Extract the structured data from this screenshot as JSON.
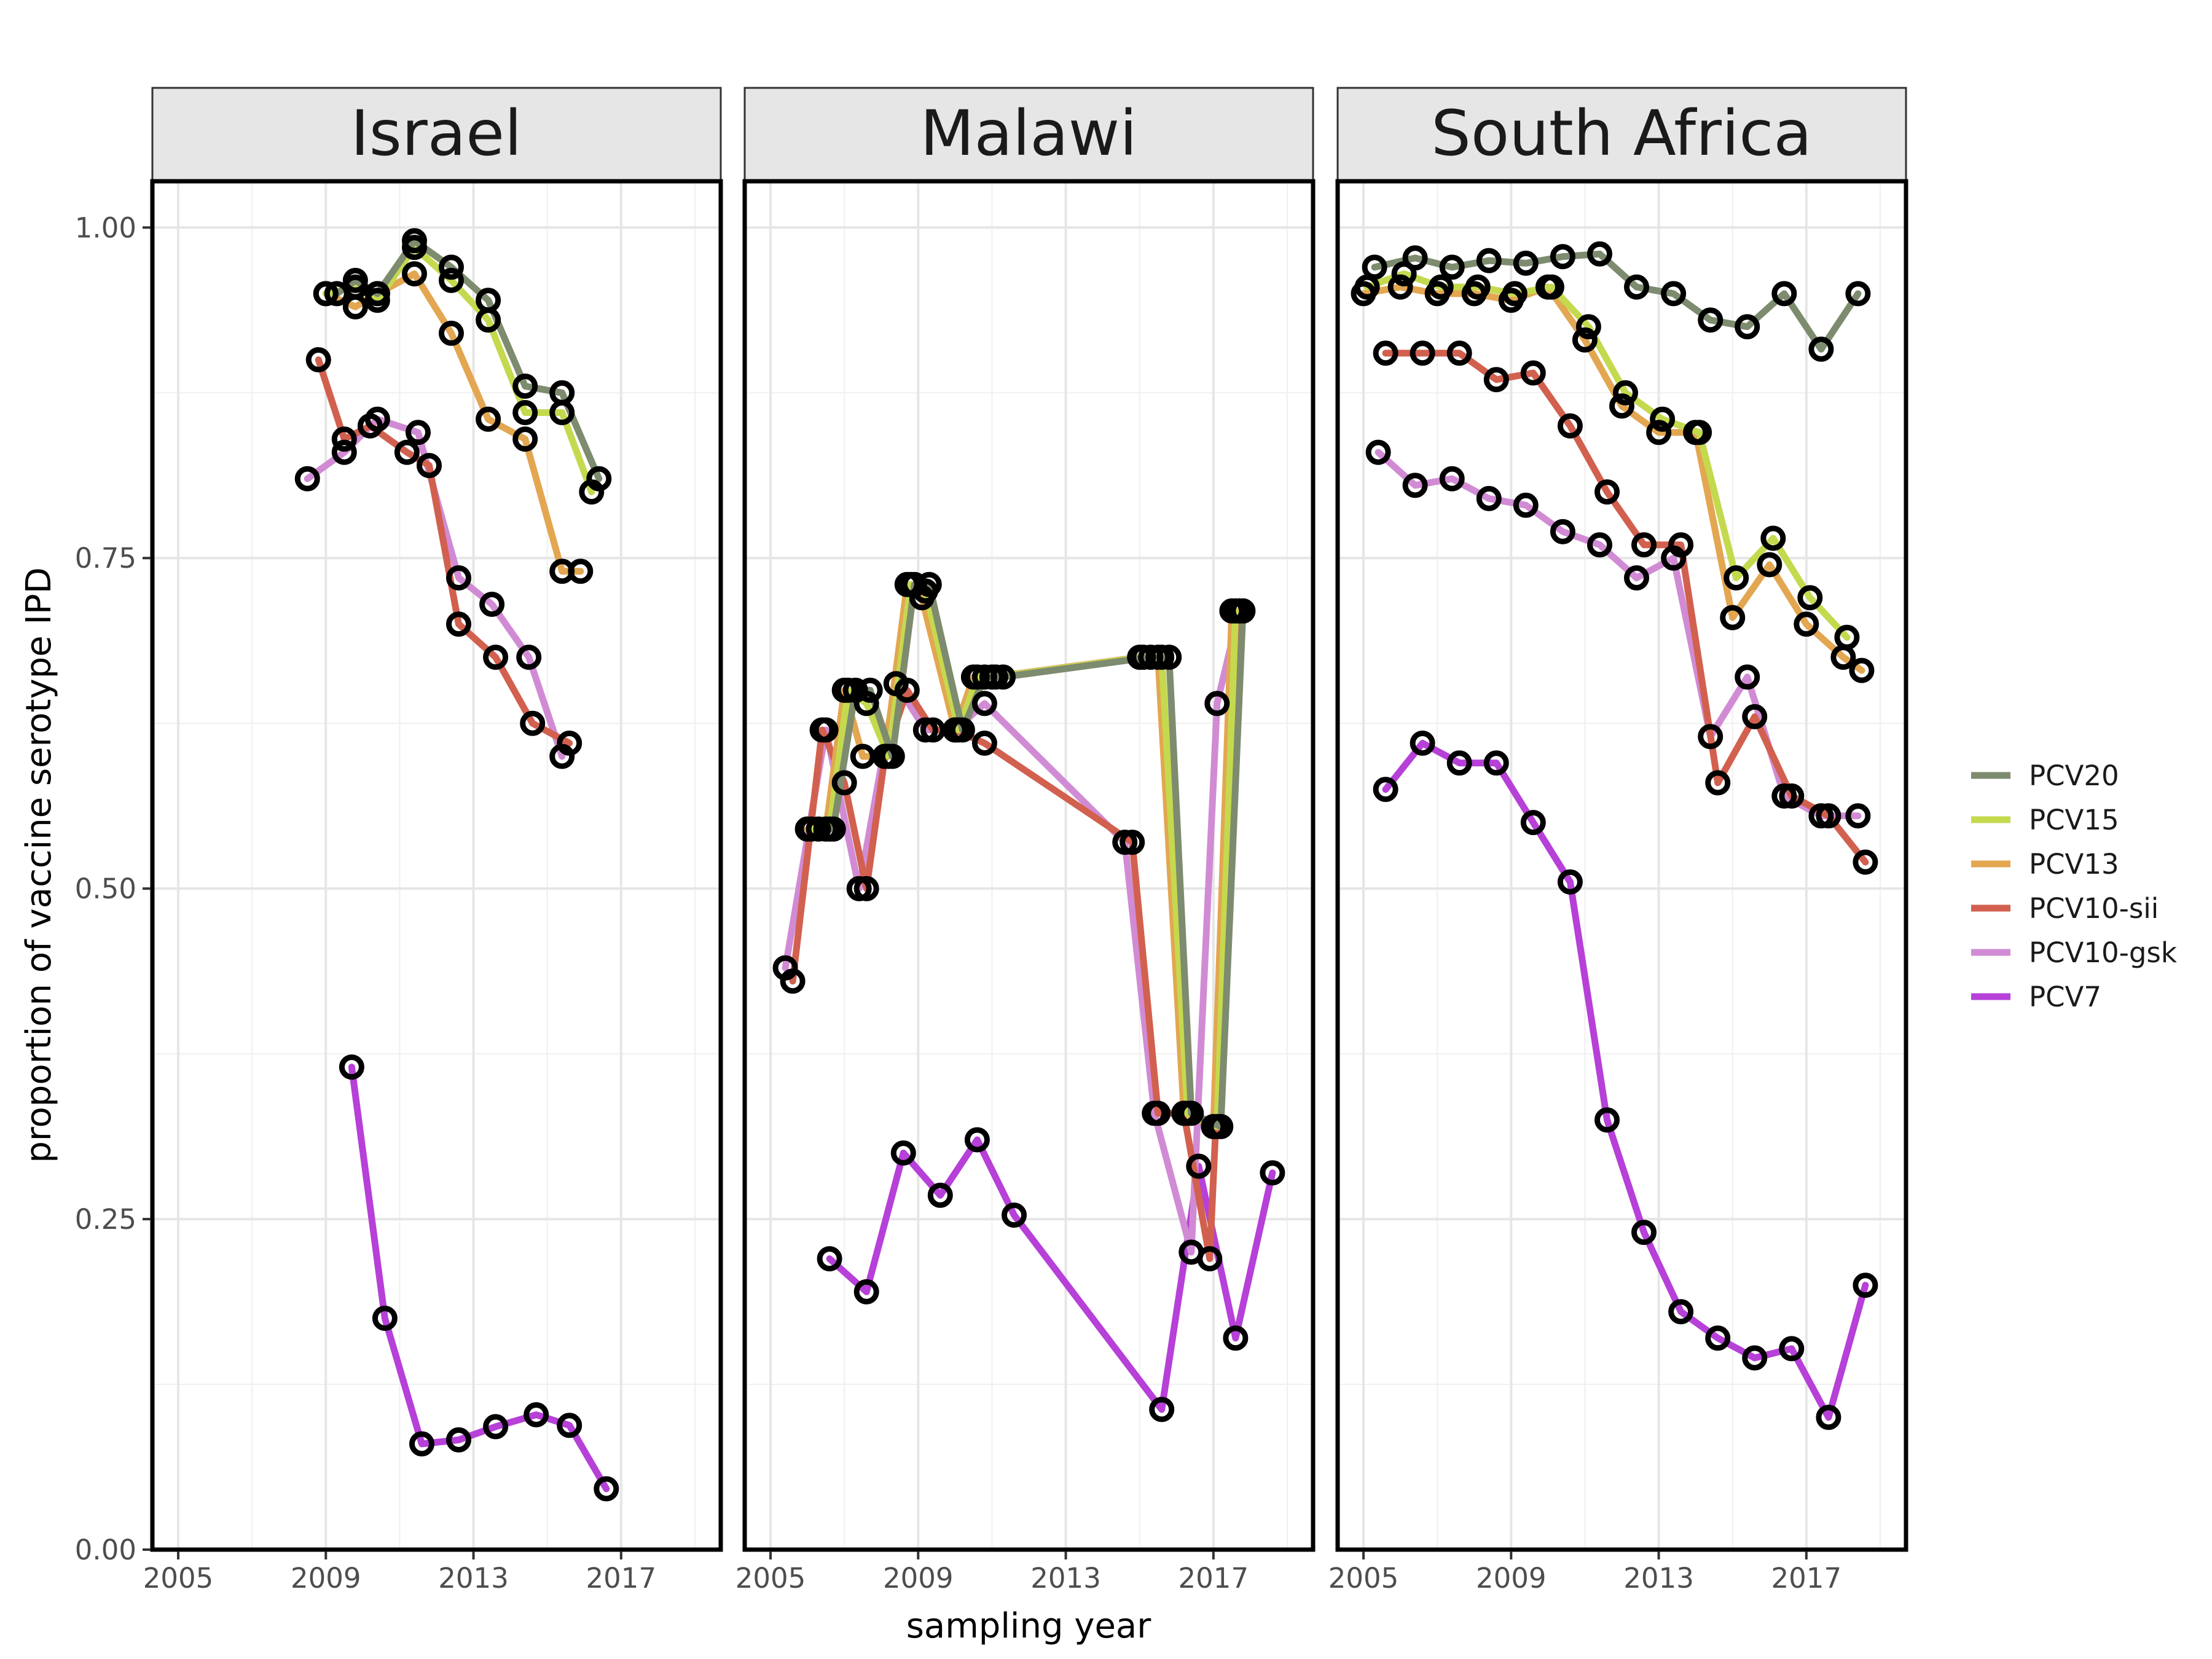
{
  "chart_data": {
    "type": "line",
    "xlabel": "sampling year",
    "ylabel": "proportion of vaccine serotype IPD",
    "xlim": [
      2004.3,
      2019.7
    ],
    "ylim": [
      0,
      1.035
    ],
    "x_ticks": [
      2005,
      2009,
      2013,
      2017
    ],
    "x_tick_labels": [
      "2005",
      "2009",
      "2013",
      "2017"
    ],
    "y_ticks": [
      0,
      0.25,
      0.5,
      0.75,
      1.0
    ],
    "y_tick_labels": [
      "0.00",
      "0.25",
      "0.50",
      "0.75",
      "1.00"
    ],
    "grid": true,
    "legend_position": "right",
    "legend": [
      {
        "name": "PCV20",
        "color": "#7d8b6f"
      },
      {
        "name": "PCV15",
        "color": "#c5d94f"
      },
      {
        "name": "PCV13",
        "color": "#e3a651"
      },
      {
        "name": "PCV10-sii",
        "color": "#d2604f"
      },
      {
        "name": "PCV10-gsk",
        "color": "#d18bd4"
      },
      {
        "name": "PCV7",
        "color": "#b640d8"
      }
    ],
    "panels": [
      {
        "title": "Israel",
        "series": [
          {
            "name": "PCV20",
            "x": [
              2009.3,
              2009.8,
              2010.4,
              2011.4,
              2012.4,
              2013.4,
              2014.4,
              2015.4,
              2016.4
            ],
            "y": [
              0.95,
              0.96,
              0.95,
              0.99,
              0.97,
              0.945,
              0.88,
              0.875,
              0.81
            ]
          },
          {
            "name": "PCV15",
            "x": [
              2009.0,
              2009.8,
              2010.4,
              2011.4,
              2012.4,
              2013.4,
              2014.4,
              2015.4,
              2016.2
            ],
            "y": [
              0.95,
              0.955,
              0.945,
              0.985,
              0.96,
              0.93,
              0.86,
              0.86,
              0.8
            ]
          },
          {
            "name": "PCV13",
            "x": [
              2009.0,
              2009.8,
              2010.4,
              2011.4,
              2012.4,
              2013.4,
              2014.4,
              2015.4,
              2015.9
            ],
            "y": [
              0.95,
              0.94,
              0.95,
              0.965,
              0.92,
              0.855,
              0.84,
              0.74,
              0.74
            ]
          },
          {
            "name": "PCV10-sii",
            "x": [
              2008.8,
              2009.5,
              2010.2,
              2011.2,
              2011.8,
              2012.6,
              2013.6,
              2014.6,
              2015.6
            ],
            "y": [
              0.9,
              0.84,
              0.85,
              0.83,
              0.82,
              0.7,
              0.675,
              0.625,
              0.61
            ]
          },
          {
            "name": "PCV10-gsk",
            "x": [
              2008.5,
              2009.5,
              2010.4,
              2011.5,
              2012.6,
              2013.5,
              2014.5,
              2015.4
            ],
            "y": [
              0.81,
              0.83,
              0.855,
              0.845,
              0.735,
              0.715,
              0.675,
              0.6
            ]
          },
          {
            "name": "PCV7",
            "x": [
              2009.7,
              2010.6,
              2011.6,
              2012.6,
              2013.6,
              2014.7,
              2015.6,
              2016.6
            ],
            "y": [
              0.365,
              0.175,
              0.08,
              0.083,
              0.093,
              0.102,
              0.094,
              0.046
            ]
          }
        ]
      },
      {
        "title": "Malawi",
        "series": [
          {
            "name": "PCV20",
            "x": [
              2006.3,
              2006.7,
              2007.3,
              2007.7,
              2008.3,
              2008.9,
              2009.3,
              2010.2,
              2010.8,
              2011.3,
              2015.3,
              2015.8,
              2016.4,
              2017.2,
              2017.8
            ],
            "y": [
              0.545,
              0.545,
              0.65,
              0.65,
              0.6,
              0.73,
              0.73,
              0.62,
              0.66,
              0.66,
              0.675,
              0.675,
              0.33,
              0.32,
              0.71
            ]
          },
          {
            "name": "PCV15",
            "x": [
              2006.1,
              2006.6,
              2007.1,
              2007.6,
              2008.2,
              2008.8,
              2009.2,
              2010.1,
              2010.6,
              2011.1,
              2015.1,
              2015.6,
              2016.3,
              2017.1,
              2017.6
            ],
            "y": [
              0.545,
              0.545,
              0.65,
              0.64,
              0.6,
              0.73,
              0.725,
              0.62,
              0.66,
              0.66,
              0.675,
              0.675,
              0.33,
              0.32,
              0.71
            ]
          },
          {
            "name": "PCV13",
            "x": [
              2006.0,
              2006.5,
              2007.0,
              2007.5,
              2008.1,
              2008.7,
              2009.1,
              2010.0,
              2010.5,
              2011.0,
              2015.0,
              2015.5,
              2016.2,
              2017.0,
              2017.5
            ],
            "y": [
              0.545,
              0.545,
              0.65,
              0.6,
              0.6,
              0.73,
              0.72,
              0.62,
              0.66,
              0.66,
              0.675,
              0.675,
              0.33,
              0.32,
              0.71
            ]
          },
          {
            "name": "PCV10-sii",
            "x": [
              2005.6,
              2006.4,
              2007.0,
              2007.6,
              2008.1,
              2008.7,
              2009.4,
              2010.0,
              2010.8,
              2014.8,
              2015.5,
              2016.2,
              2016.9,
              2017.7
            ],
            "y": [
              0.43,
              0.62,
              0.58,
              0.5,
              0.6,
              0.65,
              0.62,
              0.62,
              0.61,
              0.535,
              0.33,
              0.33,
              0.22,
              0.71
            ]
          },
          {
            "name": "PCV10-gsk",
            "x": [
              2005.4,
              2006.5,
              2007.4,
              2008.4,
              2009.2,
              2010.0,
              2010.8,
              2014.6,
              2015.4,
              2016.4,
              2017.1,
              2017.7
            ],
            "y": [
              0.44,
              0.62,
              0.5,
              0.655,
              0.62,
              0.62,
              0.64,
              0.535,
              0.33,
              0.225,
              0.64,
              0.71
            ]
          },
          {
            "name": "PCV7",
            "x": [
              2006.6,
              2007.6,
              2008.6,
              2009.6,
              2010.6,
              2011.6,
              2015.6,
              2016.6,
              2017.6,
              2018.6
            ],
            "y": [
              0.22,
              0.195,
              0.3,
              0.268,
              0.31,
              0.253,
              0.106,
              0.29,
              0.16,
              0.285
            ]
          }
        ]
      },
      {
        "title": "South Africa",
        "series": [
          {
            "name": "PCV20",
            "x": [
              2005.3,
              2006.4,
              2007.4,
              2008.4,
              2009.4,
              2010.4,
              2011.4,
              2012.4,
              2013.4,
              2014.4,
              2015.4,
              2016.4,
              2017.4,
              2018.4
            ],
            "y": [
              0.97,
              0.977,
              0.97,
              0.975,
              0.973,
              0.978,
              0.98,
              0.955,
              0.95,
              0.93,
              0.925,
              0.95,
              0.908,
              0.95
            ]
          },
          {
            "name": "PCV15",
            "x": [
              2005.1,
              2006.1,
              2007.1,
              2008.1,
              2009.1,
              2010.1,
              2011.1,
              2012.1,
              2013.1,
              2014.1,
              2015.1,
              2016.1,
              2017.1,
              2018.1
            ],
            "y": [
              0.955,
              0.965,
              0.955,
              0.955,
              0.95,
              0.955,
              0.925,
              0.875,
              0.855,
              0.845,
              0.735,
              0.765,
              0.72,
              0.69
            ]
          },
          {
            "name": "PCV13",
            "x": [
              2005.0,
              2006.0,
              2007.0,
              2008.0,
              2009.0,
              2010.0,
              2011.0,
              2012.0,
              2013.0,
              2014.0,
              2015.0,
              2016.0,
              2017.0,
              2018.0,
              2018.5
            ],
            "y": [
              0.95,
              0.955,
              0.95,
              0.95,
              0.945,
              0.955,
              0.915,
              0.865,
              0.845,
              0.845,
              0.705,
              0.745,
              0.7,
              0.675,
              0.665
            ]
          },
          {
            "name": "PCV10-sii",
            "x": [
              2005.6,
              2006.6,
              2007.6,
              2008.6,
              2009.6,
              2010.6,
              2011.6,
              2012.6,
              2013.6,
              2014.6,
              2015.6,
              2016.6,
              2017.6,
              2018.6
            ],
            "y": [
              0.905,
              0.905,
              0.905,
              0.885,
              0.89,
              0.85,
              0.8,
              0.76,
              0.76,
              0.58,
              0.63,
              0.57,
              0.555,
              0.52
            ]
          },
          {
            "name": "PCV10-gsk",
            "x": [
              2005.4,
              2006.4,
              2007.4,
              2008.4,
              2009.4,
              2010.4,
              2011.4,
              2012.4,
              2013.4,
              2014.4,
              2015.4,
              2016.4,
              2017.4,
              2018.4
            ],
            "y": [
              0.83,
              0.805,
              0.81,
              0.795,
              0.79,
              0.77,
              0.76,
              0.735,
              0.75,
              0.615,
              0.66,
              0.57,
              0.555,
              0.555
            ]
          },
          {
            "name": "PCV7",
            "x": [
              2005.6,
              2006.6,
              2007.6,
              2008.6,
              2009.6,
              2010.6,
              2011.6,
              2012.6,
              2013.6,
              2014.6,
              2015.6,
              2016.6,
              2017.6,
              2018.6
            ],
            "y": [
              0.575,
              0.61,
              0.595,
              0.595,
              0.55,
              0.505,
              0.325,
              0.24,
              0.18,
              0.16,
              0.145,
              0.152,
              0.1,
              0.2
            ]
          }
        ]
      }
    ]
  }
}
